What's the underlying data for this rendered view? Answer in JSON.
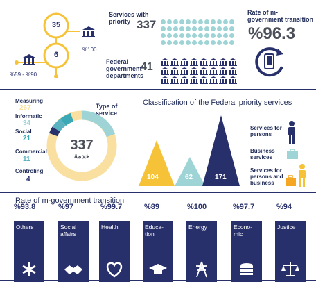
{
  "top_left": {
    "value_35": "35",
    "value_6": "6",
    "pct_100": "%100",
    "pct_range": "%59 - %90"
  },
  "services": {
    "label": "Services with priority",
    "value": "337",
    "dept_label": "Federal government departments",
    "dept_value": "41"
  },
  "transition": {
    "label": "Rate of m-government transition",
    "value": "%96.3"
  },
  "donut": {
    "center_value": "337",
    "center_label": "خدمة",
    "type_label": "Type of service",
    "items": [
      {
        "label": "Measuring",
        "value": "267"
      },
      {
        "label": "Informatic",
        "value": "34"
      },
      {
        "label": "Social",
        "value": "21"
      },
      {
        "label": "Commercial",
        "value": "11"
      },
      {
        "label": "Controling",
        "value": "4"
      }
    ]
  },
  "classification": {
    "title": "Classification of the Federal priority services",
    "values": [
      "104",
      "62",
      "171"
    ],
    "legend": [
      "Services for persons",
      "Business services",
      "Services for persons and business"
    ]
  },
  "rates": {
    "title": "Rate of m-government transition",
    "items": [
      {
        "pct": "%93.8",
        "label": "Others",
        "icon": "asterisk-icon"
      },
      {
        "pct": "%97",
        "label": "Social affairs",
        "icon": "handshake-icon"
      },
      {
        "pct": "%99.7",
        "label": "Health",
        "icon": "heart-icon"
      },
      {
        "pct": "%89",
        "label": "Educa- tion",
        "icon": "graduation-cap-icon"
      },
      {
        "pct": "%100",
        "label": "Energy",
        "icon": "power-tower-icon"
      },
      {
        "pct": "%97.7",
        "label": "Econo- mic",
        "icon": "coins-icon"
      },
      {
        "pct": "%94",
        "label": "Justice",
        "icon": "scales-icon"
      }
    ]
  },
  "colors": {
    "navy": "#27306b",
    "teal": "#9fd4d6",
    "yellow": "#f6c238",
    "orange": "#f5a623",
    "light_yellow": "#f9dfa0"
  }
}
